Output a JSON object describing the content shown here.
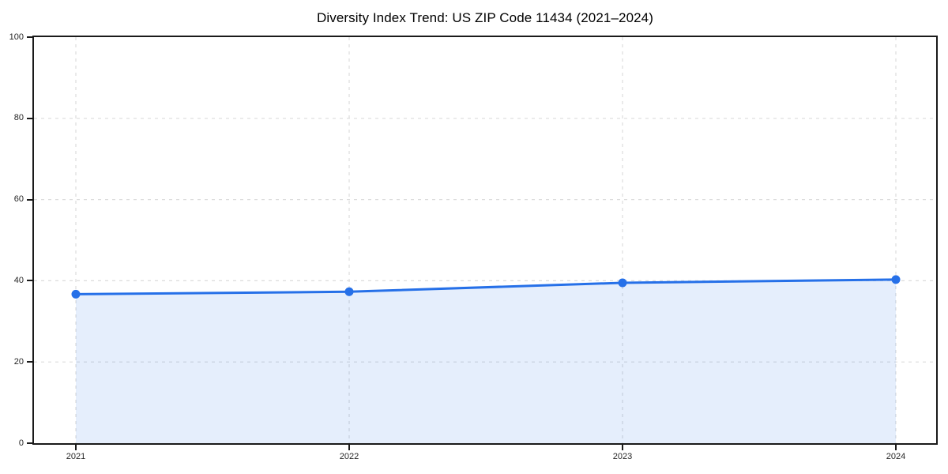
{
  "chart_data": {
    "type": "line",
    "title": "Diversity Index Trend: US ZIP Code 11434 (2021–2024)",
    "x": [
      "2021",
      "2022",
      "2023",
      "2024"
    ],
    "series": [
      {
        "name": "Diversity Index",
        "values": [
          36.7,
          37.3,
          39.5,
          40.3
        ]
      }
    ],
    "xlabel": "",
    "ylabel": "",
    "ylim": [
      0,
      100
    ],
    "yticks": [
      0,
      20,
      40,
      60,
      80,
      100
    ],
    "grid": true,
    "grid_style": "dashed",
    "legend_position": "none",
    "marker": "circle",
    "area_fill": true,
    "colors": {
      "line": "#2670E8",
      "marker": "#2670E8",
      "fill": "#2670E8",
      "fill_opacity": 0.12,
      "grid": "#DCDCDC",
      "spine": "#1A1A1A",
      "tick_label": "#262626",
      "title": "#000000"
    }
  }
}
